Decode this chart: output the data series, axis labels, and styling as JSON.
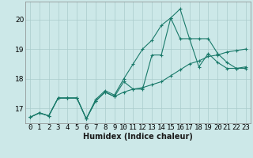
{
  "xlabel": "Humidex (Indice chaleur)",
  "bg_color": "#cce8e8",
  "grid_color": "#aacccc",
  "line_color": "#1a7a6a",
  "xlim": [
    -0.5,
    23.5
  ],
  "ylim": [
    16.5,
    20.6
  ],
  "yticks": [
    17,
    18,
    19,
    20
  ],
  "xticks": [
    0,
    1,
    2,
    3,
    4,
    5,
    6,
    7,
    8,
    9,
    10,
    11,
    12,
    13,
    14,
    15,
    16,
    17,
    18,
    19,
    20,
    21,
    22,
    23
  ],
  "series": [
    [
      16.7,
      16.85,
      16.75,
      17.35,
      17.35,
      17.35,
      16.65,
      17.25,
      17.55,
      17.4,
      17.9,
      17.65,
      17.65,
      18.8,
      18.8,
      20.05,
      20.35,
      19.35,
      18.4,
      18.85,
      18.55,
      18.35,
      18.35,
      18.4
    ],
    [
      16.7,
      16.85,
      16.75,
      17.35,
      17.35,
      17.35,
      16.65,
      17.3,
      17.6,
      17.45,
      18.0,
      18.5,
      19.0,
      19.3,
      19.8,
      20.05,
      19.35,
      19.35,
      19.35,
      19.35,
      18.85,
      18.55,
      18.35,
      18.35
    ],
    [
      16.7,
      16.85,
      16.75,
      17.35,
      17.35,
      17.35,
      16.65,
      17.25,
      17.55,
      17.4,
      17.55,
      17.65,
      17.7,
      17.8,
      17.9,
      18.1,
      18.3,
      18.5,
      18.6,
      18.75,
      18.8,
      18.9,
      18.95,
      19.0
    ]
  ],
  "xlabel_fontsize": 7,
  "tick_fontsize": 6.5
}
